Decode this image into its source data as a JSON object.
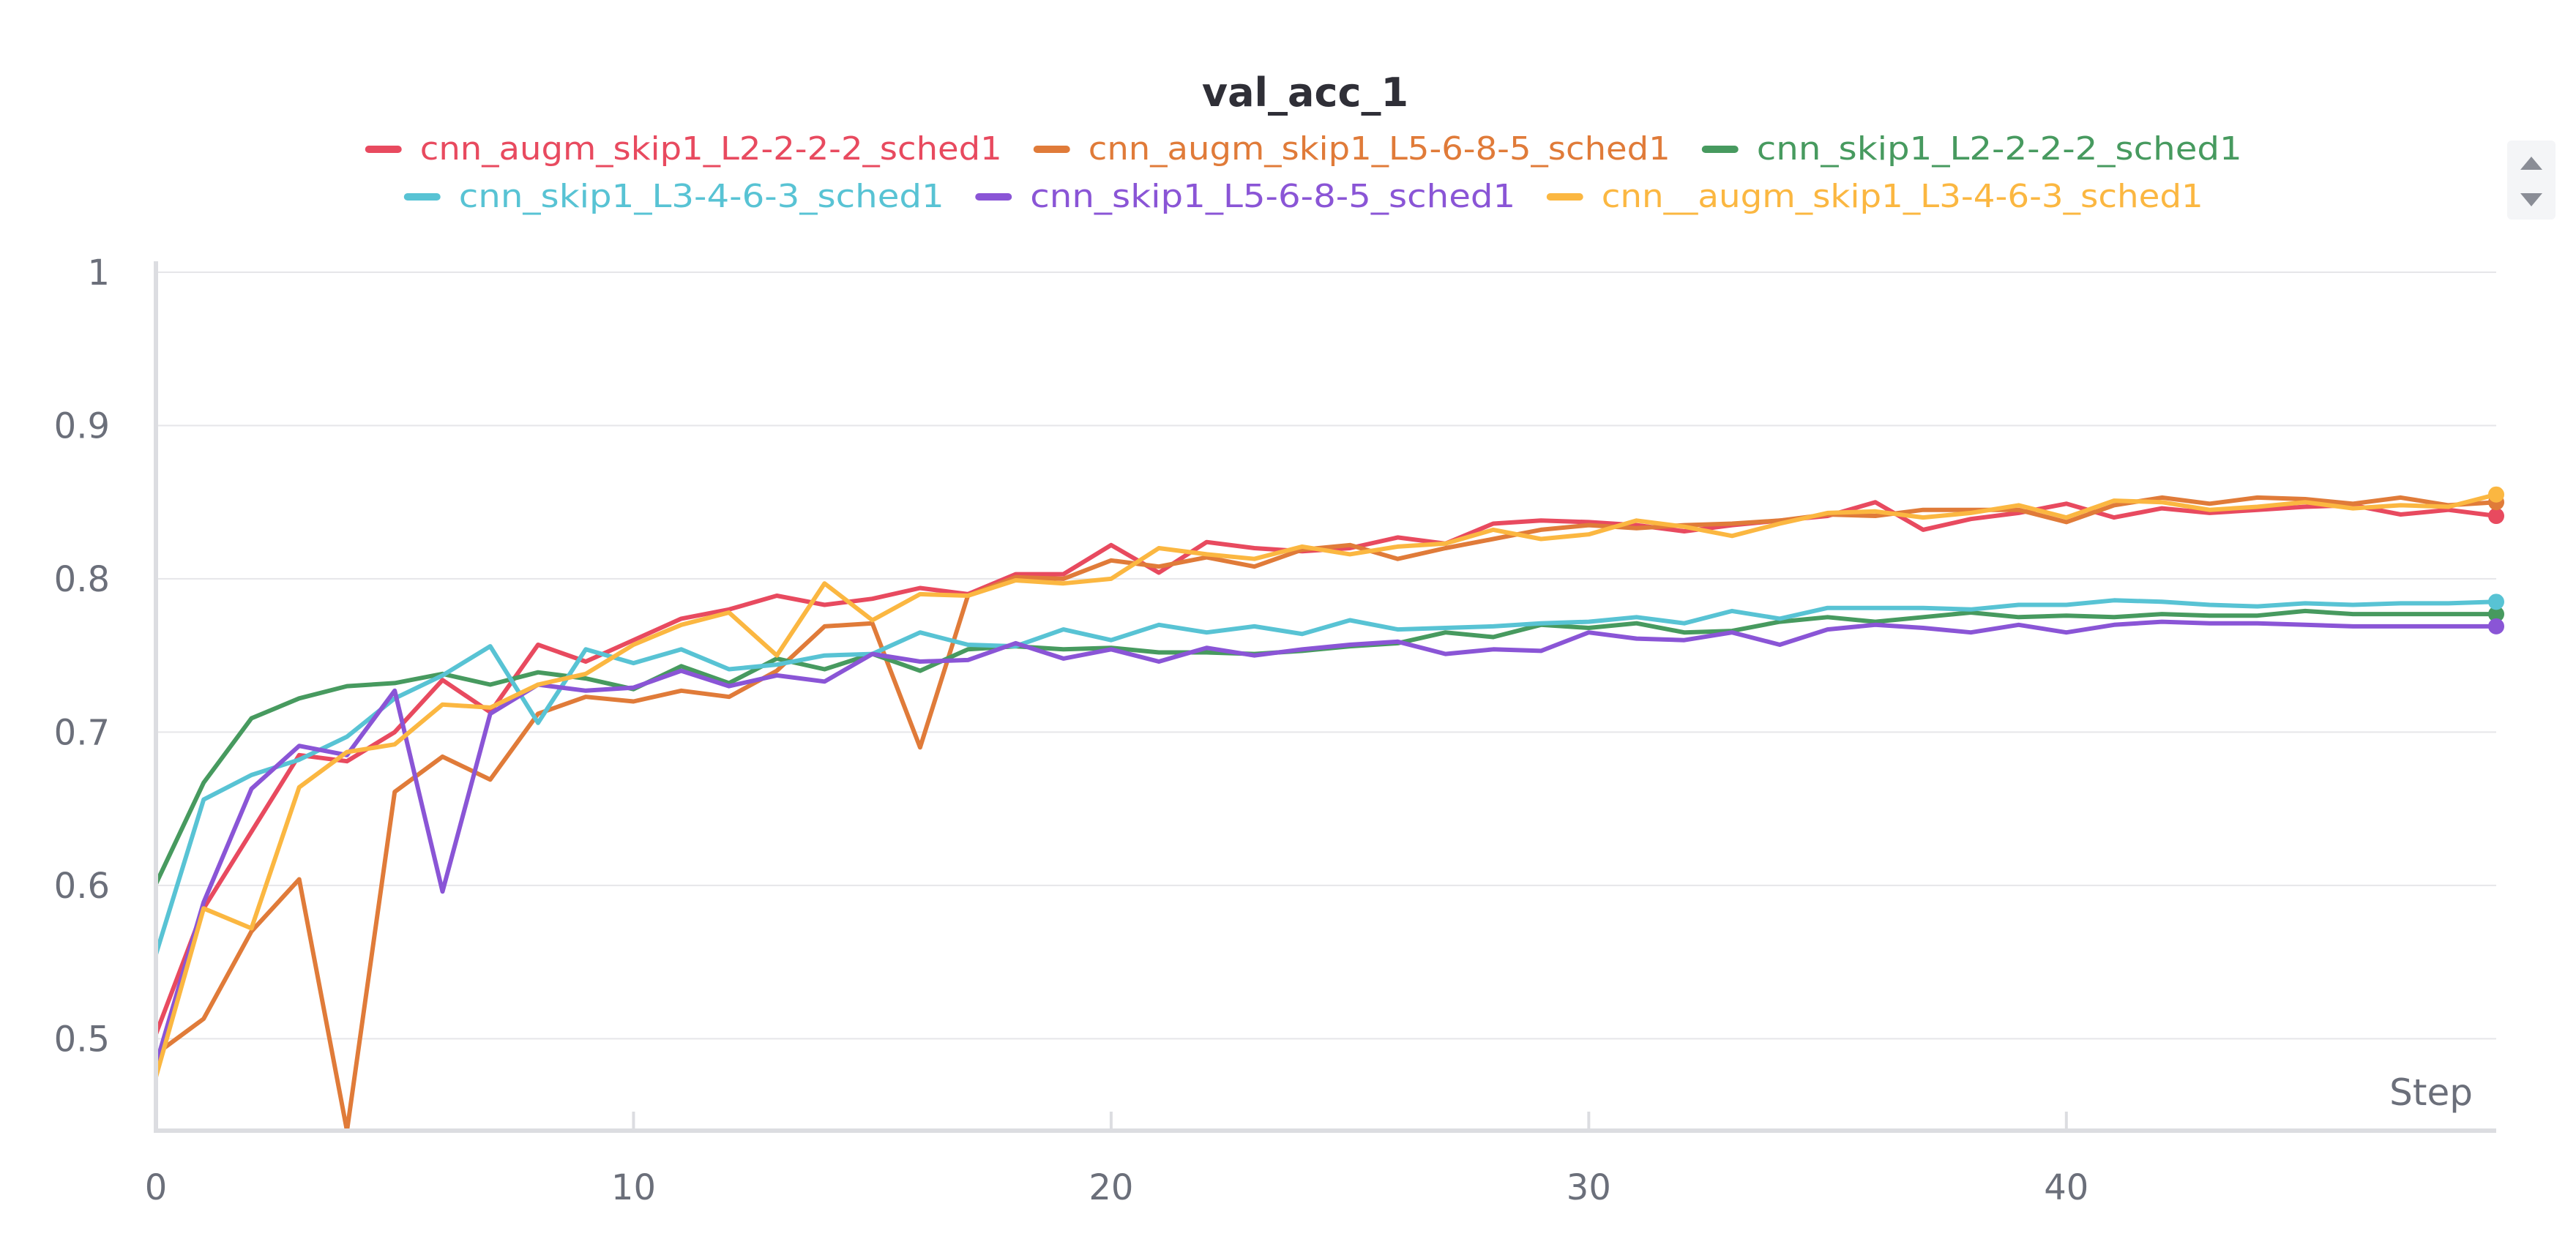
{
  "chart_data": {
    "type": "line",
    "title": "val_acc_1",
    "xlabel": "Step",
    "ylabel": "",
    "xlim": [
      0,
      49
    ],
    "ylim": [
      0.44,
      1.0
    ],
    "xticks": [
      0,
      10,
      20,
      30,
      40
    ],
    "yticks": [
      0.5,
      0.6,
      0.7,
      0.8,
      0.9,
      1
    ],
    "x_tick_labels": [
      "0",
      "10",
      "20",
      "30",
      "40"
    ],
    "y_tick_labels": [
      "0.5",
      "0.6",
      "0.7",
      "0.8",
      "0.9",
      "1"
    ],
    "grid": true,
    "legend_position": "top-center",
    "series": [
      {
        "name": "cnn_augm_skip1_L2-2-2-2_sched1",
        "color": "#e84a5f",
        "values": [
          0.503,
          0.585,
          0.635,
          0.685,
          0.681,
          0.7,
          0.734,
          0.713,
          0.757,
          0.746,
          0.76,
          0.774,
          0.78,
          0.789,
          0.783,
          0.787,
          0.794,
          0.79,
          0.803,
          0.803,
          0.822,
          0.804,
          0.824,
          0.82,
          0.818,
          0.82,
          0.827,
          0.823,
          0.836,
          0.838,
          0.837,
          0.835,
          0.831,
          0.835,
          0.838,
          0.841,
          0.85,
          0.832,
          0.839,
          0.843,
          0.849,
          0.84,
          0.846,
          0.843,
          0.845,
          0.847,
          0.848,
          0.842,
          0.845,
          0.841
        ]
      },
      {
        "name": "cnn_augm_skip1_L5-6-8-5_sched1",
        "color": "#e07b39",
        "values": [
          0.49,
          0.513,
          0.57,
          0.604,
          0.44,
          0.661,
          0.684,
          0.669,
          0.712,
          0.723,
          0.72,
          0.727,
          0.723,
          0.74,
          0.769,
          0.771,
          0.69,
          0.789,
          0.801,
          0.8,
          0.812,
          0.808,
          0.814,
          0.808,
          0.819,
          0.822,
          0.813,
          0.82,
          0.826,
          0.832,
          0.835,
          0.833,
          0.835,
          0.836,
          0.838,
          0.842,
          0.841,
          0.845,
          0.845,
          0.845,
          0.837,
          0.848,
          0.853,
          0.849,
          0.853,
          0.852,
          0.849,
          0.853,
          0.848,
          0.85
        ]
      },
      {
        "name": "cnn_skip1_L2-2-2-2_sched1",
        "color": "#479a5f",
        "values": [
          0.601,
          0.667,
          0.709,
          0.722,
          0.73,
          0.732,
          0.738,
          0.731,
          0.739,
          0.735,
          0.728,
          0.743,
          0.732,
          0.748,
          0.741,
          0.751,
          0.74,
          0.754,
          0.756,
          0.754,
          0.755,
          0.752,
          0.752,
          0.751,
          0.753,
          0.756,
          0.758,
          0.765,
          0.762,
          0.77,
          0.768,
          0.771,
          0.765,
          0.766,
          0.772,
          0.775,
          0.772,
          0.775,
          0.778,
          0.775,
          0.776,
          0.775,
          0.777,
          0.776,
          0.776,
          0.779,
          0.777,
          0.777,
          0.777,
          0.777
        ]
      },
      {
        "name": "cnn_skip1_L3-4-6-3_sched1",
        "color": "#58c3d4",
        "values": [
          0.555,
          0.656,
          0.672,
          0.682,
          0.697,
          0.722,
          0.737,
          0.756,
          0.706,
          0.754,
          0.745,
          0.754,
          0.741,
          0.744,
          0.75,
          0.751,
          0.765,
          0.757,
          0.756,
          0.767,
          0.76,
          0.77,
          0.765,
          0.769,
          0.764,
          0.773,
          0.767,
          0.768,
          0.769,
          0.771,
          0.772,
          0.775,
          0.771,
          0.779,
          0.774,
          0.781,
          0.781,
          0.781,
          0.78,
          0.783,
          0.783,
          0.786,
          0.785,
          0.783,
          0.782,
          0.784,
          0.783,
          0.784,
          0.784,
          0.785
        ]
      },
      {
        "name": "cnn_skip1_L5-6-8-5_sched1",
        "color": "#8a55d6",
        "values": [
          0.483,
          0.589,
          0.663,
          0.691,
          0.685,
          0.727,
          0.596,
          0.712,
          0.731,
          0.727,
          0.729,
          0.74,
          0.73,
          0.737,
          0.733,
          0.751,
          0.746,
          0.747,
          0.758,
          0.748,
          0.754,
          0.746,
          0.755,
          0.75,
          0.754,
          0.757,
          0.759,
          0.751,
          0.754,
          0.753,
          0.765,
          0.761,
          0.76,
          0.765,
          0.757,
          0.767,
          0.77,
          0.768,
          0.765,
          0.77,
          0.765,
          0.77,
          0.772,
          0.771,
          0.771,
          0.77,
          0.769,
          0.769,
          0.769,
          0.769
        ]
      },
      {
        "name": "cnn__augm_skip1_L3-4-6-3_sched1",
        "color": "#fbb741",
        "values": [
          0.475,
          0.585,
          0.572,
          0.664,
          0.687,
          0.692,
          0.718,
          0.716,
          0.731,
          0.738,
          0.757,
          0.77,
          0.778,
          0.75,
          0.797,
          0.773,
          0.79,
          0.789,
          0.799,
          0.797,
          0.8,
          0.82,
          0.816,
          0.813,
          0.821,
          0.816,
          0.821,
          0.823,
          0.832,
          0.826,
          0.829,
          0.838,
          0.834,
          0.828,
          0.836,
          0.843,
          0.844,
          0.84,
          0.843,
          0.848,
          0.84,
          0.851,
          0.85,
          0.845,
          0.847,
          0.85,
          0.846,
          0.848,
          0.847,
          0.855
        ]
      }
    ]
  }
}
